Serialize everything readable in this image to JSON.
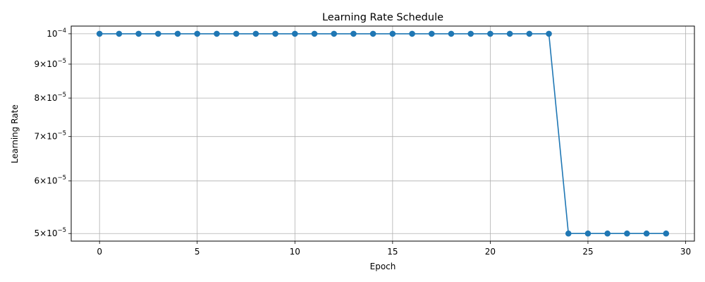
{
  "chart_data": {
    "type": "line",
    "title": "Learning Rate Schedule",
    "xlabel": "Epoch",
    "ylabel": "Learning Rate",
    "xlim": [
      -1.45,
      30.45
    ],
    "ylim": [
      4.87e-05,
      0.0001027
    ],
    "yscale": "log",
    "grid": true,
    "marker": "circle",
    "color": "#1f77b4",
    "x_ticks": [
      {
        "value": 0,
        "label": "0"
      },
      {
        "value": 5,
        "label": "5"
      },
      {
        "value": 10,
        "label": "10"
      },
      {
        "value": 15,
        "label": "15"
      },
      {
        "value": 20,
        "label": "20"
      },
      {
        "value": 25,
        "label": "25"
      },
      {
        "value": 30,
        "label": "30"
      }
    ],
    "y_ticks": [
      {
        "value": 0.0001,
        "mantissa": "",
        "exponent": "−4"
      },
      {
        "value": 9e-05,
        "mantissa": "9",
        "exponent": "−5"
      },
      {
        "value": 8e-05,
        "mantissa": "8",
        "exponent": "−5"
      },
      {
        "value": 7e-05,
        "mantissa": "7",
        "exponent": "−5"
      },
      {
        "value": 6e-05,
        "mantissa": "6",
        "exponent": "−5"
      },
      {
        "value": 5e-05,
        "mantissa": "5",
        "exponent": "−5"
      }
    ],
    "x": [
      0,
      1,
      2,
      3,
      4,
      5,
      6,
      7,
      8,
      9,
      10,
      11,
      12,
      13,
      14,
      15,
      16,
      17,
      18,
      19,
      20,
      21,
      22,
      23,
      24,
      25,
      26,
      27,
      28,
      29
    ],
    "series": [
      {
        "values": [
          0.0001,
          0.0001,
          0.0001,
          0.0001,
          0.0001,
          0.0001,
          0.0001,
          0.0001,
          0.0001,
          0.0001,
          0.0001,
          0.0001,
          0.0001,
          0.0001,
          0.0001,
          0.0001,
          0.0001,
          0.0001,
          0.0001,
          0.0001,
          0.0001,
          0.0001,
          0.0001,
          0.0001,
          5e-05,
          5e-05,
          5e-05,
          5e-05,
          5e-05,
          5e-05
        ]
      }
    ]
  }
}
